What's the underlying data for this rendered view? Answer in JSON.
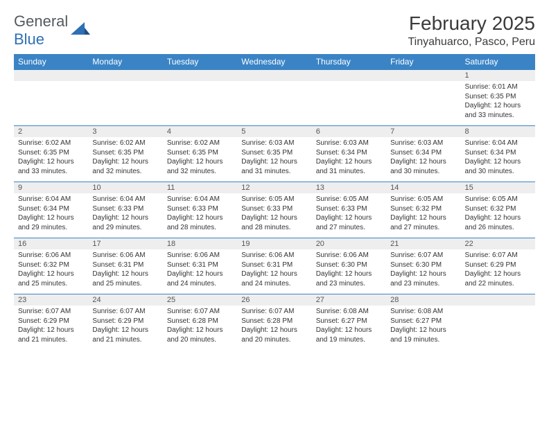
{
  "logo": {
    "part1": "General",
    "part2": "Blue"
  },
  "title": "February 2025",
  "location": "Tinyahuarco, Pasco, Peru",
  "colors": {
    "header_bg": "#3a84c6",
    "header_text": "#ffffff",
    "daynum_bg": "#eeeeee",
    "border": "#3a84c6",
    "body_text": "#333333",
    "logo_gray": "#555a5f",
    "logo_blue": "#2f6fb3",
    "page_bg": "#ffffff"
  },
  "typography": {
    "title_fontsize": 28,
    "location_fontsize": 16,
    "dayhdr_fontsize": 12,
    "daynum_fontsize": 11,
    "detail_fontsize": 10
  },
  "columns": [
    "Sunday",
    "Monday",
    "Tuesday",
    "Wednesday",
    "Thursday",
    "Friday",
    "Saturday"
  ],
  "weeks": [
    [
      null,
      null,
      null,
      null,
      null,
      null,
      {
        "d": "1",
        "sunrise": "6:01 AM",
        "sunset": "6:35 PM",
        "daylight": "12 hours and 33 minutes."
      }
    ],
    [
      {
        "d": "2",
        "sunrise": "6:02 AM",
        "sunset": "6:35 PM",
        "daylight": "12 hours and 33 minutes."
      },
      {
        "d": "3",
        "sunrise": "6:02 AM",
        "sunset": "6:35 PM",
        "daylight": "12 hours and 32 minutes."
      },
      {
        "d": "4",
        "sunrise": "6:02 AM",
        "sunset": "6:35 PM",
        "daylight": "12 hours and 32 minutes."
      },
      {
        "d": "5",
        "sunrise": "6:03 AM",
        "sunset": "6:35 PM",
        "daylight": "12 hours and 31 minutes."
      },
      {
        "d": "6",
        "sunrise": "6:03 AM",
        "sunset": "6:34 PM",
        "daylight": "12 hours and 31 minutes."
      },
      {
        "d": "7",
        "sunrise": "6:03 AM",
        "sunset": "6:34 PM",
        "daylight": "12 hours and 30 minutes."
      },
      {
        "d": "8",
        "sunrise": "6:04 AM",
        "sunset": "6:34 PM",
        "daylight": "12 hours and 30 minutes."
      }
    ],
    [
      {
        "d": "9",
        "sunrise": "6:04 AM",
        "sunset": "6:34 PM",
        "daylight": "12 hours and 29 minutes."
      },
      {
        "d": "10",
        "sunrise": "6:04 AM",
        "sunset": "6:33 PM",
        "daylight": "12 hours and 29 minutes."
      },
      {
        "d": "11",
        "sunrise": "6:04 AM",
        "sunset": "6:33 PM",
        "daylight": "12 hours and 28 minutes."
      },
      {
        "d": "12",
        "sunrise": "6:05 AM",
        "sunset": "6:33 PM",
        "daylight": "12 hours and 28 minutes."
      },
      {
        "d": "13",
        "sunrise": "6:05 AM",
        "sunset": "6:33 PM",
        "daylight": "12 hours and 27 minutes."
      },
      {
        "d": "14",
        "sunrise": "6:05 AM",
        "sunset": "6:32 PM",
        "daylight": "12 hours and 27 minutes."
      },
      {
        "d": "15",
        "sunrise": "6:05 AM",
        "sunset": "6:32 PM",
        "daylight": "12 hours and 26 minutes."
      }
    ],
    [
      {
        "d": "16",
        "sunrise": "6:06 AM",
        "sunset": "6:32 PM",
        "daylight": "12 hours and 25 minutes."
      },
      {
        "d": "17",
        "sunrise": "6:06 AM",
        "sunset": "6:31 PM",
        "daylight": "12 hours and 25 minutes."
      },
      {
        "d": "18",
        "sunrise": "6:06 AM",
        "sunset": "6:31 PM",
        "daylight": "12 hours and 24 minutes."
      },
      {
        "d": "19",
        "sunrise": "6:06 AM",
        "sunset": "6:31 PM",
        "daylight": "12 hours and 24 minutes."
      },
      {
        "d": "20",
        "sunrise": "6:06 AM",
        "sunset": "6:30 PM",
        "daylight": "12 hours and 23 minutes."
      },
      {
        "d": "21",
        "sunrise": "6:07 AM",
        "sunset": "6:30 PM",
        "daylight": "12 hours and 23 minutes."
      },
      {
        "d": "22",
        "sunrise": "6:07 AM",
        "sunset": "6:29 PM",
        "daylight": "12 hours and 22 minutes."
      }
    ],
    [
      {
        "d": "23",
        "sunrise": "6:07 AM",
        "sunset": "6:29 PM",
        "daylight": "12 hours and 21 minutes."
      },
      {
        "d": "24",
        "sunrise": "6:07 AM",
        "sunset": "6:29 PM",
        "daylight": "12 hours and 21 minutes."
      },
      {
        "d": "25",
        "sunrise": "6:07 AM",
        "sunset": "6:28 PM",
        "daylight": "12 hours and 20 minutes."
      },
      {
        "d": "26",
        "sunrise": "6:07 AM",
        "sunset": "6:28 PM",
        "daylight": "12 hours and 20 minutes."
      },
      {
        "d": "27",
        "sunrise": "6:08 AM",
        "sunset": "6:27 PM",
        "daylight": "12 hours and 19 minutes."
      },
      {
        "d": "28",
        "sunrise": "6:08 AM",
        "sunset": "6:27 PM",
        "daylight": "12 hours and 19 minutes."
      },
      null
    ]
  ],
  "labels": {
    "sunrise": "Sunrise:",
    "sunset": "Sunset:",
    "daylight": "Daylight:"
  }
}
